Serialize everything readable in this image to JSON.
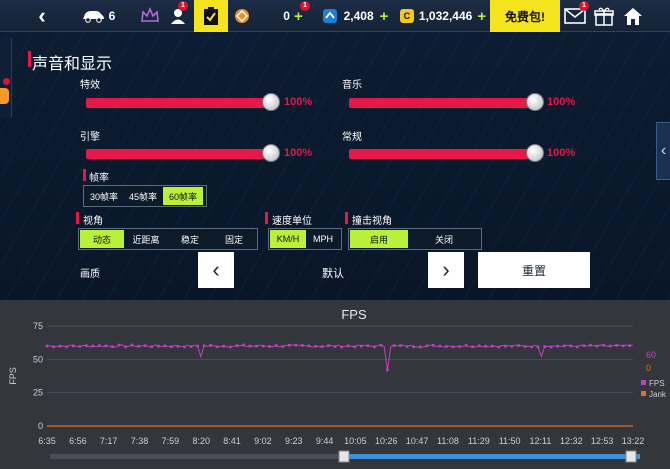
{
  "topbar": {
    "car_count": "6",
    "zero_value": "0",
    "gems": "2,408",
    "cash": "1,032,446",
    "free_pack": "免费包!",
    "badge_count": "1",
    "coin_symbol": "C",
    "plus": "+"
  },
  "settings": {
    "section_title": "声音和显示",
    "sliders": [
      {
        "label": "特效",
        "value": 100,
        "display": "100%"
      },
      {
        "label": "音乐",
        "value": 100,
        "display": "100%"
      },
      {
        "label": "引擎",
        "value": 100,
        "display": "100%"
      },
      {
        "label": "常规",
        "value": 100,
        "display": "100%"
      }
    ],
    "framerate": {
      "label": "帧率",
      "options": [
        "30帧率",
        "45帧率",
        "60帧率"
      ],
      "selected": "60帧率"
    },
    "view": {
      "label": "视角",
      "options": [
        "动态",
        "近距离",
        "稳定",
        "固定"
      ],
      "selected": "动态"
    },
    "speed_unit": {
      "label": "速度单位",
      "options": [
        "KM/H",
        "MPH"
      ],
      "selected": "KM/H"
    },
    "crash_view": {
      "label": "撞击视角",
      "options": [
        "启用",
        "关闭"
      ],
      "selected": "启用"
    },
    "quality": {
      "label": "画质",
      "value": "默认"
    },
    "reset_label": "重置"
  },
  "chart_data": {
    "type": "line",
    "title": "FPS",
    "ylabel": "FPS",
    "ylim": [
      0,
      75
    ],
    "yticks": [
      0,
      25,
      50,
      75
    ],
    "x": [
      "6:35",
      "6:56",
      "7:17",
      "7:38",
      "7:59",
      "8:20",
      "8:41",
      "9:02",
      "9:23",
      "9:44",
      "10:05",
      "10:26",
      "10:47",
      "11:08",
      "11:29",
      "11:50",
      "12:11",
      "12:32",
      "12:53",
      "13:22"
    ],
    "series": [
      {
        "name": "FPS",
        "color": "#c040c0",
        "typical": 60,
        "min_dip": 42,
        "dips": [
          {
            "at": "8:20",
            "value": 52
          },
          {
            "at": "10:26",
            "value": 42
          },
          {
            "at": "12:11",
            "value": 52
          }
        ]
      },
      {
        "name": "Jank",
        "color": "#e07020",
        "value": 0
      }
    ],
    "current": {
      "FPS": "60",
      "Jank": "0"
    },
    "legend": "right"
  }
}
